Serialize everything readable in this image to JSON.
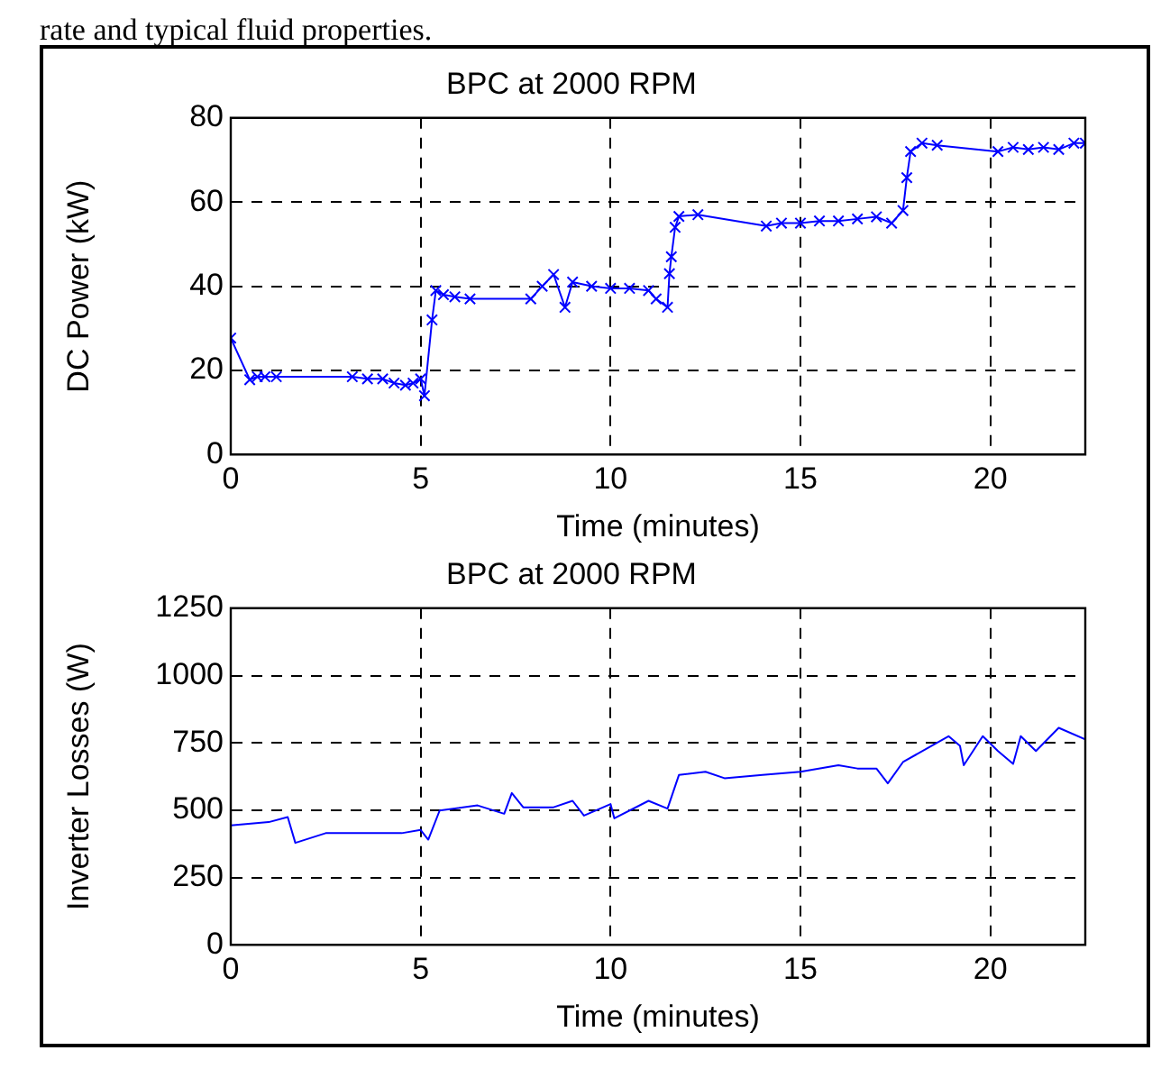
{
  "chart_data": [
    {
      "type": "line",
      "title": "BPC at 2000 RPM",
      "xlabel": "Time (minutes)",
      "ylabel": "DC Power (kW)",
      "annotations": [
        "rate and typical fluid properties."
      ],
      "series": [
        {
          "color": "#0000ff",
          "x": [
            0,
            0.5,
            0.7,
            0.9,
            1.2,
            3.2,
            3.6,
            4.0,
            4.3,
            4.6,
            4.8,
            5.0,
            5.1,
            5.3,
            5.4,
            5.6,
            5.9,
            6.3,
            7.9,
            8.2,
            8.5,
            8.8,
            9.0,
            9.5,
            10.0,
            10.5,
            11.0,
            11.2,
            11.5,
            11.55,
            11.6,
            11.7,
            11.8,
            12.3,
            14.1,
            14.5,
            15.0,
            15.5,
            16.0,
            16.5,
            17.0,
            17.4,
            17.7,
            17.8,
            17.9,
            18.2,
            18.6,
            20.2,
            20.6,
            21.0,
            21.4,
            21.8,
            22.2,
            22.5
          ],
          "values": [
            27.7,
            17.8,
            18.5,
            18.5,
            18.5,
            18.5,
            18,
            18,
            17,
            16.5,
            17,
            18,
            14,
            32,
            39,
            38,
            37.5,
            37,
            37,
            40,
            42.8,
            35,
            41,
            40,
            39.5,
            39.5,
            39,
            37,
            35,
            43,
            47,
            54,
            56.6,
            57,
            54.3,
            55,
            55,
            55.5,
            55.5,
            56,
            56.5,
            55,
            58,
            65.8,
            72,
            74,
            73.5,
            72,
            73,
            72.5,
            73,
            72.5,
            74,
            74
          ]
        }
      ],
      "xlim": [
        0,
        22.5
      ],
      "xticks": [
        0,
        5,
        10,
        15,
        20
      ],
      "ylim": [
        0,
        80
      ],
      "yticks": [
        0,
        20,
        40,
        60,
        80
      ],
      "grid": true,
      "marker": "cross",
      "line_style": "solid"
    },
    {
      "type": "line",
      "title": "BPC at 2000 RPM",
      "xlabel": "Time (minutes)",
      "ylabel": "Inverter Losses (W)",
      "series": [
        {
          "color": "#0000ff",
          "x": [
            0,
            1.0,
            1.5,
            1.7,
            2.5,
            3.5,
            4.5,
            5.0,
            5.2,
            5.5,
            6.5,
            7.2,
            7.4,
            7.7,
            8.5,
            9.0,
            9.3,
            10.0,
            10.1,
            11.0,
            11.5,
            11.8,
            12.5,
            13.0,
            14.0,
            15.0,
            16.0,
            16.5,
            17.0,
            17.3,
            17.7,
            18.3,
            18.9,
            19.2,
            19.3,
            19.8,
            20.2,
            20.6,
            20.8,
            21.2,
            21.8,
            22.5
          ],
          "values": [
            444,
            456,
            475,
            379,
            415,
            415,
            415,
            427,
            391,
            499,
            518,
            487,
            564,
            511,
            511,
            535,
            480,
            523,
            470,
            535,
            506,
            631,
            643,
            619,
            631,
            643,
            667,
            655,
            655,
            600,
            679,
            727,
            775,
            739,
            667,
            775,
            720,
            672,
            775,
            720,
            806,
            763
          ]
        }
      ],
      "xlim": [
        0,
        22.5
      ],
      "xticks": [
        0,
        5,
        10,
        15,
        20
      ],
      "ylim": [
        0,
        1250
      ],
      "yticks": [
        0,
        250,
        500,
        750,
        1000,
        1250
      ],
      "grid": true,
      "marker": "none",
      "line_style": "solid"
    }
  ]
}
